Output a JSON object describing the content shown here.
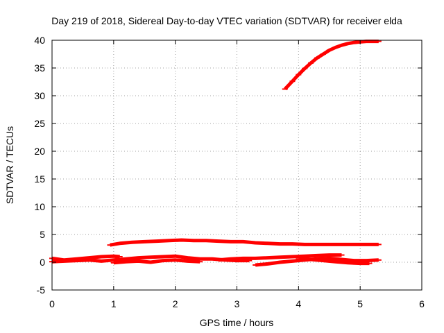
{
  "chart_data": {
    "type": "line",
    "title": "Day 219 of 2018, Sidereal Day-to-day VTEC variation (SDTVAR) for receiver elda",
    "xlabel": "GPS time / hours",
    "ylabel": "SDTVAR / TECUs",
    "xlim": [
      0,
      6
    ],
    "ylim": [
      -5,
      40
    ],
    "xticks": [
      "0",
      "1",
      "2",
      "3",
      "4",
      "5",
      "6"
    ],
    "yticks": [
      "-5",
      "0",
      "5",
      "10",
      "15",
      "20",
      "25",
      "30",
      "35",
      "40"
    ],
    "grid": true,
    "series_color": "#ff0000",
    "series": [
      {
        "x": [
          3.78,
          3.9,
          4.0,
          4.1,
          4.2,
          4.3,
          4.4,
          4.5,
          4.6,
          4.7,
          4.8,
          4.9,
          5.0,
          5.1,
          5.2,
          5.3
        ],
        "y": [
          31.2,
          32.6,
          33.8,
          34.9,
          35.9,
          36.8,
          37.5,
          38.2,
          38.7,
          39.1,
          39.4,
          39.6,
          39.7,
          39.8,
          39.8,
          39.8
        ]
      },
      {
        "x": [
          0.94,
          1.1,
          1.3,
          1.5,
          1.7,
          1.9,
          2.1,
          2.3,
          2.5,
          2.7,
          2.9,
          3.1,
          3.3,
          3.5,
          3.7,
          3.9,
          4.1,
          4.3,
          4.5,
          4.7,
          4.9,
          5.1,
          5.3
        ],
        "y": [
          3.1,
          3.4,
          3.6,
          3.7,
          3.8,
          3.9,
          4.0,
          3.9,
          3.9,
          3.8,
          3.7,
          3.7,
          3.5,
          3.4,
          3.3,
          3.3,
          3.2,
          3.2,
          3.2,
          3.2,
          3.2,
          3.2,
          3.2
        ]
      },
      {
        "x": [
          0.0,
          0.2,
          0.4,
          0.6,
          0.8,
          1.0,
          1.1
        ],
        "y": [
          0.7,
          0.4,
          0.6,
          0.8,
          1.0,
          1.1,
          1.0
        ]
      },
      {
        "x": [
          0.0,
          0.2,
          0.4,
          0.6,
          0.8,
          1.0,
          1.2,
          1.4,
          1.6,
          1.8,
          2.0,
          2.2,
          2.4,
          2.6,
          2.8,
          3.0,
          3.2
        ],
        "y": [
          0.1,
          0.2,
          0.3,
          0.4,
          0.2,
          0.4,
          0.6,
          0.8,
          0.9,
          1.0,
          1.1,
          0.8,
          0.6,
          0.6,
          0.4,
          0.3,
          0.3
        ]
      },
      {
        "x": [
          1.0,
          1.2,
          1.4,
          1.6,
          1.8,
          2.0,
          2.2,
          2.4
        ],
        "y": [
          -0.1,
          0.1,
          0.2,
          0.0,
          0.3,
          0.4,
          0.2,
          0.1
        ]
      },
      {
        "x": [
          2.7,
          2.9,
          3.1,
          3.3,
          3.5,
          3.7,
          3.9,
          4.1,
          4.3,
          4.5,
          4.7
        ],
        "y": [
          0.4,
          0.6,
          0.7,
          0.7,
          0.8,
          0.9,
          1.0,
          1.1,
          1.2,
          1.3,
          1.3
        ]
      },
      {
        "x": [
          3.3,
          3.5,
          3.7,
          3.9,
          4.1,
          4.3,
          4.5,
          4.7,
          4.9,
          5.1,
          5.3
        ],
        "y": [
          -0.5,
          -0.3,
          0.0,
          0.2,
          0.4,
          0.6,
          0.7,
          0.5,
          0.3,
          0.3,
          0.4
        ]
      },
      {
        "x": [
          4.0,
          4.2,
          4.4,
          4.6,
          4.8,
          5.0,
          5.15
        ],
        "y": [
          0.6,
          0.5,
          0.3,
          0.1,
          -0.1,
          -0.2,
          -0.2
        ]
      }
    ]
  }
}
